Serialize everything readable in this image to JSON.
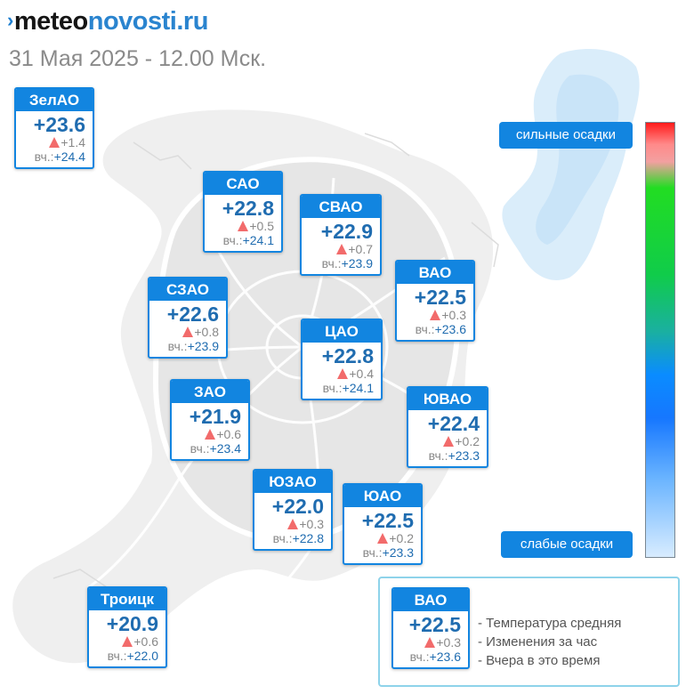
{
  "logo": {
    "mark": "›",
    "meteo": "meteo",
    "rest": "novosti.ru"
  },
  "datetime": "31 Мая 2025 - 12.00 Мск.",
  "yesterday_prefix": "вч.:",
  "districts": [
    {
      "name": "ЗелАО",
      "temp": "+23.6",
      "delta": "+1.4",
      "yesterday": "+24.4"
    },
    {
      "name": "САО",
      "temp": "+22.8",
      "delta": "+0.5",
      "yesterday": "+24.1"
    },
    {
      "name": "СВАО",
      "temp": "+22.9",
      "delta": "+0.7",
      "yesterday": "+23.9"
    },
    {
      "name": "ВАО",
      "temp": "+22.5",
      "delta": "+0.3",
      "yesterday": "+23.6"
    },
    {
      "name": "СЗАО",
      "temp": "+22.6",
      "delta": "+0.8",
      "yesterday": "+23.9"
    },
    {
      "name": "ЦАО",
      "temp": "+22.8",
      "delta": "+0.4",
      "yesterday": "+24.1"
    },
    {
      "name": "ЗАО",
      "temp": "+21.9",
      "delta": "+0.6",
      "yesterday": "+23.4"
    },
    {
      "name": "ЮВАО",
      "temp": "+22.4",
      "delta": "+0.2",
      "yesterday": "+23.3"
    },
    {
      "name": "ЮЗАО",
      "temp": "+22.0",
      "delta": "+0.3",
      "yesterday": "+22.8"
    },
    {
      "name": "ЮАО",
      "temp": "+22.5",
      "delta": "+0.2",
      "yesterday": "+23.3"
    },
    {
      "name": "Троицк",
      "temp": "+20.9",
      "delta": "+0.6",
      "yesterday": "+22.0"
    }
  ],
  "precip_scale": {
    "top_label": "сильные осадки",
    "bottom_label": "слабые осадки",
    "colors": [
      "#ff1a1a",
      "#22dd22",
      "#0a8cff",
      "#d8ecff"
    ]
  },
  "legend": {
    "sample": {
      "name": "ВАО",
      "temp": "+22.5",
      "delta": "+0.3",
      "yesterday": "+23.6"
    },
    "items": [
      "- Температура средняя",
      "- Изменения за час",
      "- Вчера в это время"
    ]
  },
  "colors": {
    "accent": "#1285e0",
    "temp_text": "#1f6cb0",
    "increase_marker": "#f26b6b",
    "precip_area": "#d6ebfa"
  }
}
